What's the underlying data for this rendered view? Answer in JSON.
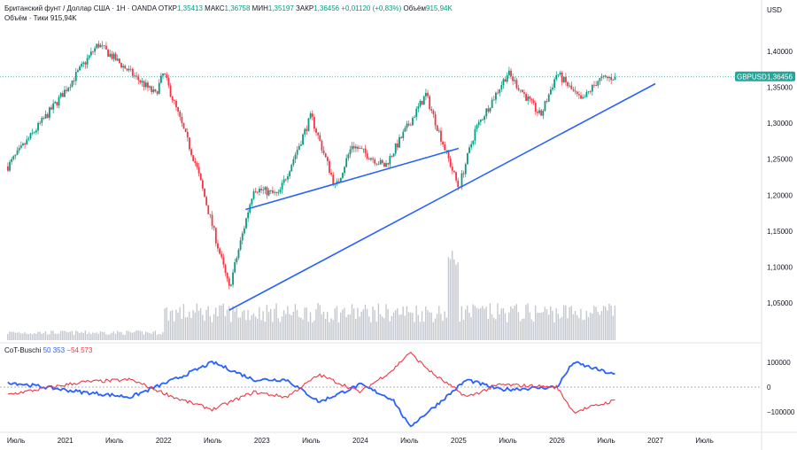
{
  "header": {
    "symbol_title": "Британский фунт / Доллар США · 1Н · OANDA",
    "open_label": "ОТКР",
    "open": "1,35413",
    "high_label": "МАКС",
    "high": "1,36758",
    "low_label": "МИН",
    "low": "1,35197",
    "close_label": "ЗАКР",
    "close": "1,36456",
    "change": "+0,01120 (+0,83%)",
    "volume_label": "Объём",
    "volume_value": "915,94K",
    "volume_sub_label": "Объём · Тики",
    "volume_sub_value": "915,94K"
  },
  "currency": "USD",
  "price_badge": {
    "symbol": "GBPUSD",
    "value": "1,36456"
  },
  "indicator": {
    "name": "CoT-Buschi",
    "value_blue": "50 353",
    "value_red": "−54 573"
  },
  "colors": {
    "up": "#089981",
    "down": "#f23645",
    "trend": "#2962ff",
    "blue": "#2962ff",
    "red": "#f23645",
    "volume": "#c4c7ce",
    "badge": "#26a69a"
  },
  "chart_data": [
    {
      "type": "candlestick",
      "title": "Британский фунт / Доллар США · 1Н · OANDA",
      "ylim": [
        1.0,
        1.45
      ],
      "y_ticks": [
        "1,40000",
        "1,35000",
        "1,30000",
        "1,25000",
        "1,20000",
        "1,15000",
        "1,10000",
        "1,05000"
      ],
      "x_ticks": [
        "Июль",
        "2021",
        "Июль",
        "2022",
        "Июль",
        "2023",
        "Июль",
        "2024",
        "Июль",
        "2025",
        "Июль",
        "2026",
        "Июль",
        "2027",
        "Июль"
      ],
      "anchors": [
        {
          "x": "2020-06",
          "y": 1.24
        },
        {
          "x": "2020-12",
          "y": 1.33
        },
        {
          "x": "2021-05",
          "y": 1.41
        },
        {
          "x": "2021-08",
          "y": 1.38
        },
        {
          "x": "2021-12",
          "y": 1.34
        },
        {
          "x": "2022-01",
          "y": 1.37
        },
        {
          "x": "2022-05",
          "y": 1.24
        },
        {
          "x": "2022-09",
          "y": 1.07
        },
        {
          "x": "2022-12",
          "y": 1.21
        },
        {
          "x": "2023-03",
          "y": 1.2
        },
        {
          "x": "2023-07",
          "y": 1.31
        },
        {
          "x": "2023-10",
          "y": 1.21
        },
        {
          "x": "2023-12",
          "y": 1.27
        },
        {
          "x": "2024-04",
          "y": 1.24
        },
        {
          "x": "2024-09",
          "y": 1.34
        },
        {
          "x": "2025-01",
          "y": 1.21
        },
        {
          "x": "2025-03",
          "y": 1.29
        },
        {
          "x": "2025-07",
          "y": 1.37
        },
        {
          "x": "2025-11",
          "y": 1.31
        },
        {
          "x": "2026-01",
          "y": 1.37
        },
        {
          "x": "2026-04",
          "y": 1.33
        },
        {
          "x": "2026-06",
          "y": 1.36
        },
        {
          "x": "2026-08",
          "y": 1.3646
        }
      ],
      "trendlines": [
        {
          "from": {
            "x": "2022-09",
            "y": 1.04
          },
          "to": {
            "x": "2027-01",
            "y": 1.355
          }
        },
        {
          "from": {
            "x": "2022-11",
            "y": 1.18
          },
          "to": {
            "x": "2025-01",
            "y": 1.265
          }
        }
      ],
      "last_price": 1.36456
    },
    {
      "type": "line",
      "title": "CoT-Buschi",
      "ylim": [
        -150000,
        150000
      ],
      "y_ticks": [
        "100000",
        "0",
        "−100000"
      ],
      "series": [
        {
          "name": "blue",
          "color": "#2962ff",
          "anchors": [
            {
              "x": "2020-06",
              "y": 20000
            },
            {
              "x": "2021-03",
              "y": -20000
            },
            {
              "x": "2021-09",
              "y": -40000
            },
            {
              "x": "2022-03",
              "y": 40000
            },
            {
              "x": "2022-07",
              "y": 100000
            },
            {
              "x": "2022-12",
              "y": 30000
            },
            {
              "x": "2023-04",
              "y": 30000
            },
            {
              "x": "2023-08",
              "y": -60000
            },
            {
              "x": "2024-01",
              "y": 10000
            },
            {
              "x": "2024-05",
              "y": -50000
            },
            {
              "x": "2024-07",
              "y": -160000
            },
            {
              "x": "2024-10",
              "y": -80000
            },
            {
              "x": "2025-02",
              "y": 30000
            },
            {
              "x": "2025-06",
              "y": -10000
            },
            {
              "x": "2026-01",
              "y": 0
            },
            {
              "x": "2026-03",
              "y": 100000
            },
            {
              "x": "2026-08",
              "y": 50353
            }
          ]
        },
        {
          "name": "red",
          "color": "#f23645",
          "anchors": [
            {
              "x": "2020-06",
              "y": -30000
            },
            {
              "x": "2021-03",
              "y": 20000
            },
            {
              "x": "2021-09",
              "y": 30000
            },
            {
              "x": "2022-03",
              "y": -50000
            },
            {
              "x": "2022-07",
              "y": -90000
            },
            {
              "x": "2022-12",
              "y": -20000
            },
            {
              "x": "2023-04",
              "y": -40000
            },
            {
              "x": "2023-08",
              "y": 50000
            },
            {
              "x": "2024-01",
              "y": -20000
            },
            {
              "x": "2024-05",
              "y": 70000
            },
            {
              "x": "2024-07",
              "y": 140000
            },
            {
              "x": "2024-10",
              "y": 50000
            },
            {
              "x": "2025-02",
              "y": -40000
            },
            {
              "x": "2025-06",
              "y": 10000
            },
            {
              "x": "2026-01",
              "y": 0
            },
            {
              "x": "2026-03",
              "y": -100000
            },
            {
              "x": "2026-08",
              "y": -54573
            }
          ]
        }
      ]
    }
  ]
}
